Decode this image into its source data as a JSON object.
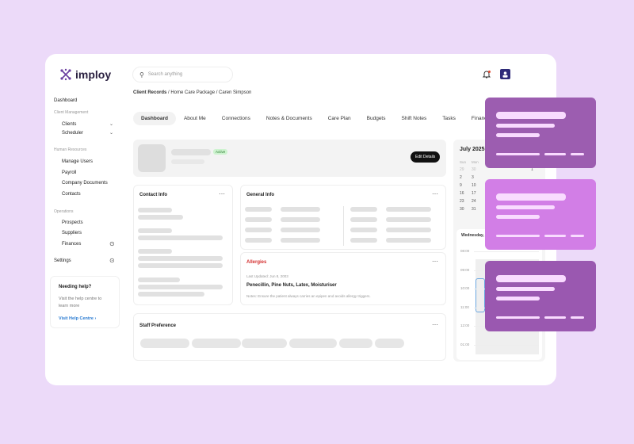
{
  "brand": {
    "name": "imploy",
    "accent": "#6b3fa0"
  },
  "search": {
    "placeholder": "Search anything"
  },
  "breadcrumb": {
    "root": "Client Records",
    "rest": " / Home Care Package / Caren Simpson"
  },
  "sidebar": {
    "dashboard": "Dashboard",
    "client_management": "Client Management",
    "clients": "Clients",
    "scheduler": "Scheduler",
    "human_resources": "Human Resources",
    "manage_users": "Manage Users",
    "payroll": "Payroll",
    "company_documents": "Company Documents",
    "contacts": "Contacts",
    "operations": "Operations",
    "prospects": "Prospects",
    "suppliers": "Suppliers",
    "finances": "Finances",
    "settings": "Settings"
  },
  "help": {
    "title": "Needing help?",
    "desc": "Visit the help centre to learn more",
    "link": "Visit Help Centre"
  },
  "tabs": [
    "Dashboard",
    "About Me",
    "Connections",
    "Notes & Documents",
    "Care Plan",
    "Budgets",
    "Shift Notes",
    "Tasks",
    "Financials"
  ],
  "profile": {
    "status": "Active",
    "edit": "Edit Details"
  },
  "contact": {
    "title": "Contact Info"
  },
  "general": {
    "title": "General Info"
  },
  "allergies": {
    "title": "Allergies",
    "updated": "Last Updated: Jun 8, 2003",
    "items": "Penecillin, Pine Nuts, Latex, Moisturiser",
    "notes": "Notes: Ensure the patient always carries an epipen and avoids allergy triggers."
  },
  "staff": {
    "title": "Staff Preference"
  },
  "calendar": {
    "month": "July 2025",
    "weekdays": [
      "Sun",
      "Mon"
    ],
    "dates": [
      "29",
      "30",
      "",
      "",
      "",
      "",
      "1",
      "2",
      "3",
      "",
      "",
      "",
      "",
      "",
      "9",
      "10",
      "",
      "",
      "",
      "",
      "",
      "16",
      "17",
      "",
      "",
      "",
      "",
      "",
      "23",
      "24",
      "",
      "",
      "",
      "",
      "",
      "30",
      "31"
    ],
    "day_label": "Wednesday,",
    "times": [
      "08:00",
      "09:00",
      "10:00",
      "11:00",
      "12:00",
      "01:00"
    ]
  },
  "colors": {
    "card1": "#9c5db0",
    "card2": "#d27ee6",
    "card3": "#9a58b0",
    "bars": "#f9dbff"
  }
}
